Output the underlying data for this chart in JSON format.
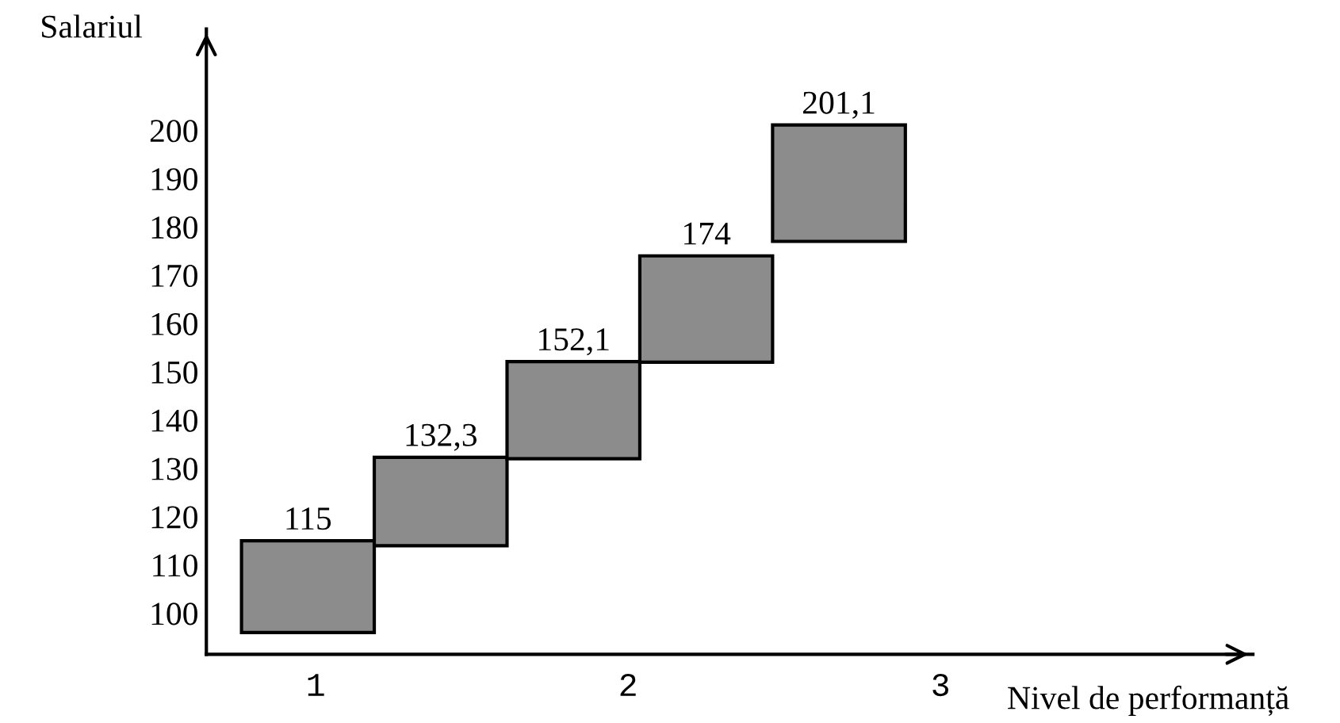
{
  "chart_data": {
    "type": "bar",
    "xlabel": "Nivel de performanță",
    "ylabel": "Salariul",
    "x": [
      0.975,
      1.4,
      1.825,
      2.25,
      2.675
    ],
    "base": [
      96,
      114,
      132,
      152,
      177
    ],
    "values": [
      19,
      18.3,
      20.1,
      22,
      24.1
    ],
    "value_labels": [
      "115",
      "132,3",
      "152,1",
      "174",
      "201,1"
    ],
    "color": "#8c8c8c",
    "xlim": [
      0.65,
      4.0
    ],
    "ylim": [
      91.5,
      221
    ],
    "xticks": [
      1,
      2,
      3
    ],
    "yticks": [
      100,
      110,
      120,
      130,
      140,
      150,
      160,
      170,
      180,
      190,
      200
    ],
    "grid": false
  }
}
